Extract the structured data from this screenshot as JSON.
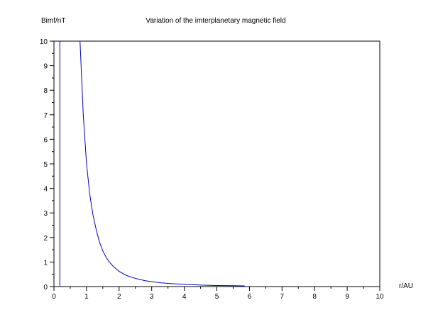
{
  "chart_data": {
    "type": "line",
    "title": "Variation of the imterplanetary magnetic field",
    "xlabel": "r/AU",
    "ylabel": "Bimf/nT",
    "xlim": [
      0,
      10
    ],
    "ylim": [
      0,
      10
    ],
    "xticks": [
      "0",
      "1",
      "2",
      "3",
      "4",
      "5",
      "6",
      "7",
      "8",
      "9",
      "10"
    ],
    "yticks": [
      "0",
      "1",
      "2",
      "3",
      "4",
      "5",
      "6",
      "7",
      "8",
      "9",
      "10"
    ],
    "grid": false,
    "series": [
      {
        "color": "#0000cc",
        "x": [
          0.8,
          0.9,
          1.0,
          1.1,
          1.2,
          1.3,
          1.4,
          1.5,
          1.6,
          1.7,
          1.8,
          2.0,
          2.2,
          2.4,
          2.6,
          2.8,
          3.0,
          3.3,
          3.6,
          4.0,
          4.5,
          5.0,
          5.5,
          5.85
        ],
        "y": [
          10.0,
          7.0,
          5.0,
          3.75,
          2.9,
          2.3,
          1.8,
          1.45,
          1.2,
          1.0,
          0.85,
          0.62,
          0.47,
          0.37,
          0.3,
          0.24,
          0.2,
          0.15,
          0.12,
          0.09,
          0.06,
          0.045,
          0.035,
          0.03
        ]
      },
      {
        "color": "#0000cc",
        "x": [
          0.18,
          0.18
        ],
        "y": [
          0,
          10
        ]
      }
    ]
  }
}
